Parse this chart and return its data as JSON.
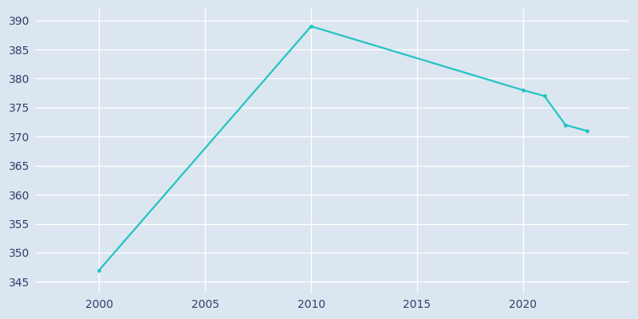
{
  "years": [
    2000,
    2010,
    2020,
    2021,
    2022,
    2023
  ],
  "population": [
    347,
    389,
    378,
    377,
    372,
    371
  ],
  "line_color": "#22C4C4",
  "bg_color": "#dce6f0",
  "grid_color": "#ffffff",
  "tick_color": "#2d3f6c",
  "ylim": [
    343,
    392
  ],
  "yticks": [
    345,
    350,
    355,
    360,
    365,
    370,
    375,
    380,
    385,
    390
  ],
  "xticks": [
    2000,
    2005,
    2010,
    2015,
    2020
  ],
  "xlim": [
    1997,
    2025
  ]
}
